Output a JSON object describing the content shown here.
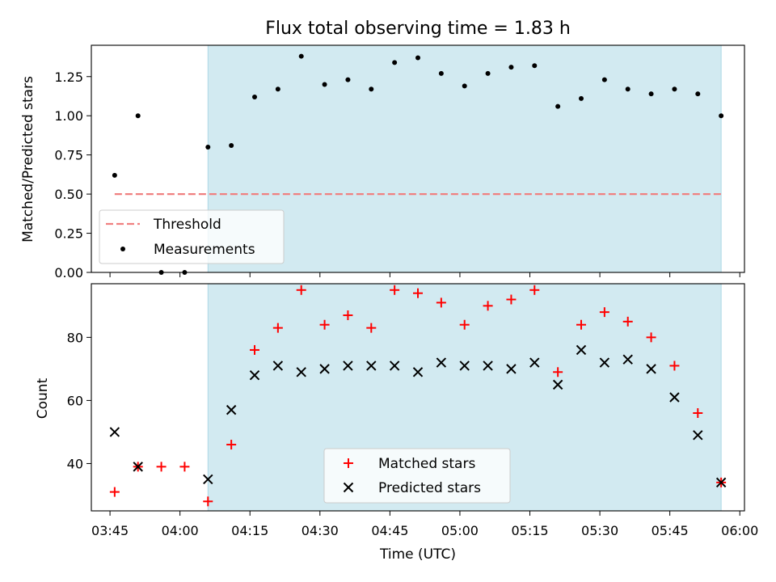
{
  "title": "Flux total observing time = 1.83 h",
  "colors": {
    "shade": "#add8e6",
    "threshold": "#f08080",
    "matched": "#ff0000",
    "predicted": "#000000",
    "points": "#000000"
  },
  "chart_data": [
    {
      "type": "scatter",
      "panel": "top",
      "title": "Flux total observing time = 1.83 h",
      "xlabel": "",
      "ylabel": "Matched/Predicted stars",
      "xlim": [
        "03:41",
        "06:01"
      ],
      "ylim": [
        0,
        1.45
      ],
      "yticks": [
        "0.00",
        "0.25",
        "0.50",
        "0.75",
        "1.00",
        "1.25"
      ],
      "shaded_x_range": [
        "04:06",
        "05:56"
      ],
      "legend_position": "lower-left",
      "threshold": {
        "name": "Threshold",
        "value": 0.5,
        "x_range": [
          "03:46",
          "05:56"
        ],
        "style": "dashed"
      },
      "series": [
        {
          "name": "Measurements",
          "x": [
            "03:46",
            "03:51",
            "03:56",
            "04:01",
            "04:06",
            "04:11",
            "04:16",
            "04:21",
            "04:26",
            "04:31",
            "04:36",
            "04:41",
            "04:46",
            "04:51",
            "04:56",
            "05:01",
            "05:06",
            "05:11",
            "05:16",
            "05:21",
            "05:26",
            "05:31",
            "05:36",
            "05:41",
            "05:46",
            "05:51",
            "05:56"
          ],
          "y": [
            0.62,
            1.0,
            0.0,
            0.0,
            0.8,
            0.81,
            1.12,
            1.17,
            1.38,
            1.2,
            1.23,
            1.17,
            1.34,
            1.37,
            1.27,
            1.19,
            1.27,
            1.31,
            1.32,
            1.06,
            1.11,
            1.23,
            1.17,
            1.14,
            1.17,
            1.14,
            1.0
          ]
        }
      ]
    },
    {
      "type": "scatter",
      "panel": "bottom",
      "xlabel": "Time (UTC)",
      "ylabel": "Count",
      "xlim": [
        "03:41",
        "06:01"
      ],
      "ylim": [
        25,
        97
      ],
      "xticks": [
        "03:45",
        "04:00",
        "04:15",
        "04:30",
        "04:45",
        "05:00",
        "05:15",
        "05:30",
        "05:45",
        "06:00"
      ],
      "yticks": [
        "40",
        "60",
        "80"
      ],
      "shaded_x_range": [
        "04:06",
        "05:56"
      ],
      "legend_position": "lower-center",
      "series": [
        {
          "name": "Matched stars",
          "marker": "+",
          "x": [
            "03:46",
            "03:51",
            "03:56",
            "04:01",
            "04:06",
            "04:11",
            "04:16",
            "04:21",
            "04:26",
            "04:31",
            "04:36",
            "04:41",
            "04:46",
            "04:51",
            "04:56",
            "05:01",
            "05:06",
            "05:11",
            "05:16",
            "05:21",
            "05:26",
            "05:31",
            "05:36",
            "05:41",
            "05:46",
            "05:51",
            "05:56"
          ],
          "y": [
            31,
            39,
            39,
            39,
            28,
            46,
            76,
            83,
            95,
            84,
            87,
            83,
            95,
            94,
            91,
            84,
            90,
            92,
            95,
            69,
            84,
            88,
            85,
            80,
            71,
            56,
            34
          ]
        },
        {
          "name": "Predicted stars",
          "marker": "x",
          "x": [
            "03:46",
            "03:51",
            "04:06",
            "04:11",
            "04:16",
            "04:21",
            "04:26",
            "04:31",
            "04:36",
            "04:41",
            "04:46",
            "04:51",
            "04:56",
            "05:01",
            "05:06",
            "05:11",
            "05:16",
            "05:21",
            "05:26",
            "05:31",
            "05:36",
            "05:41",
            "05:46",
            "05:51",
            "05:56"
          ],
          "y": [
            50,
            39,
            35,
            57,
            68,
            71,
            69,
            70,
            71,
            71,
            71,
            69,
            72,
            71,
            71,
            70,
            72,
            65,
            76,
            72,
            73,
            70,
            61,
            49,
            34
          ]
        }
      ]
    }
  ]
}
